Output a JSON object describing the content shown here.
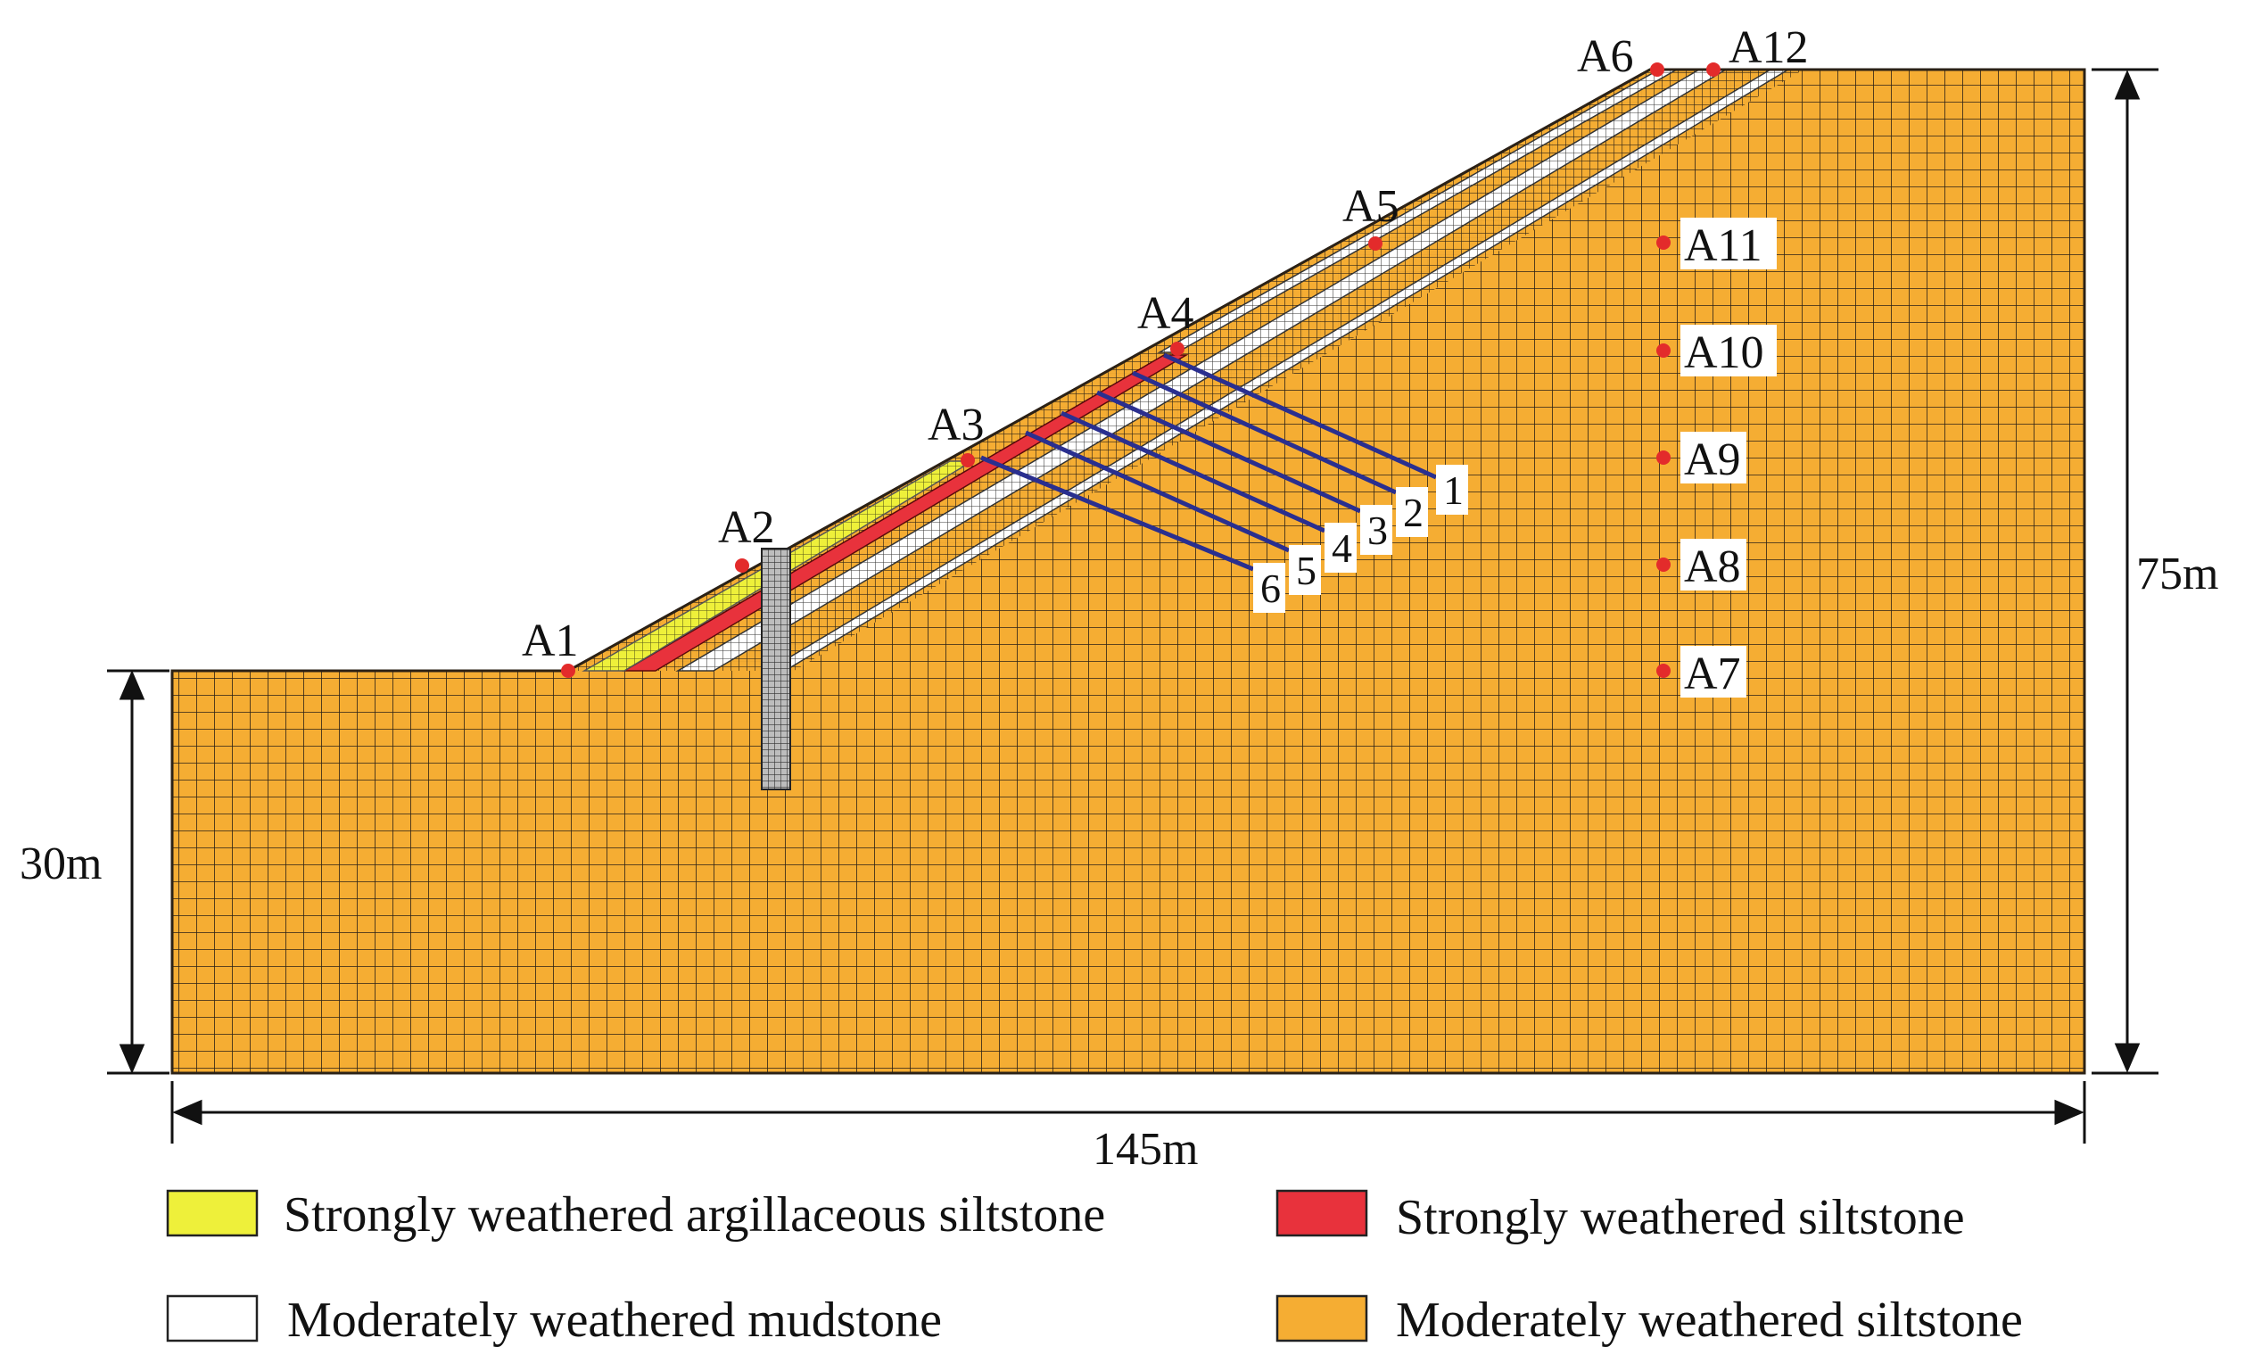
{
  "points": [
    {
      "id": "A1"
    },
    {
      "id": "A2"
    },
    {
      "id": "A3"
    },
    {
      "id": "A4"
    },
    {
      "id": "A5"
    },
    {
      "id": "A6"
    },
    {
      "id": "A12"
    },
    {
      "id": "A11"
    },
    {
      "id": "A10"
    },
    {
      "id": "A9"
    },
    {
      "id": "A8"
    },
    {
      "id": "A7"
    }
  ],
  "anchors": [
    "1",
    "2",
    "3",
    "4",
    "5",
    "6"
  ],
  "dimensions": {
    "left_height": "30m",
    "right_height": "75m",
    "width": "145m"
  },
  "legend": [
    {
      "label": "Strongly weathered argillaceous siltstone",
      "color": "#eef03a"
    },
    {
      "label": "Strongly weathered siltstone",
      "color": "#e8323c"
    },
    {
      "label": "Moderately weathered mudstone",
      "color": "#ffffff"
    },
    {
      "label": "Moderately weathered  siltstone",
      "color": "#f5ad33"
    }
  ],
  "colors": {
    "siltstone": "#f5ad33",
    "mesh": "#2b2116",
    "point": "#e32b2b",
    "anchor": "#2a2f8f"
  }
}
